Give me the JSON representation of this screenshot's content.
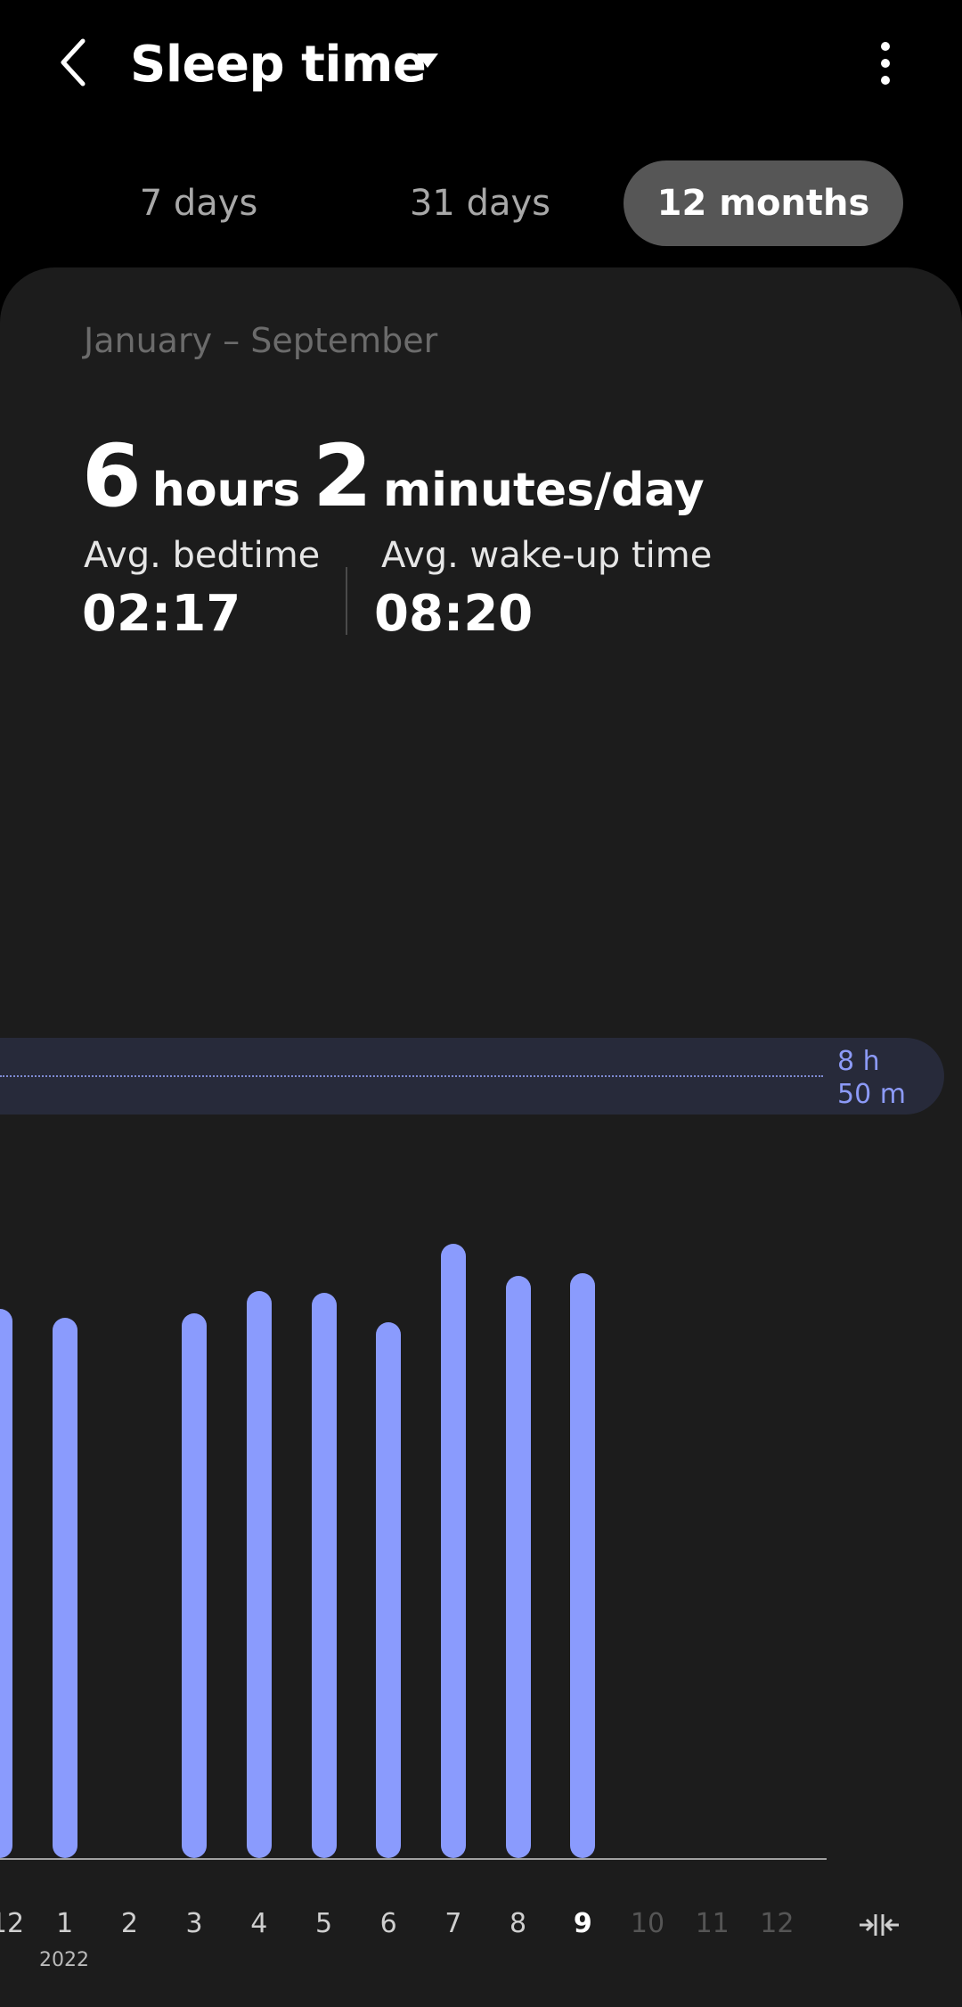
{
  "header": {
    "title": "Sleep time",
    "back_icon": "chevron-left-icon",
    "dropdown_icon": "caret-down-icon",
    "more_icon": "more-vertical-icon"
  },
  "tabs": [
    {
      "label": "7 days",
      "active": false
    },
    {
      "label": "31 days",
      "active": false
    },
    {
      "label": "12 months",
      "active": true
    }
  ],
  "summary": {
    "period": "January – September",
    "hours_value": "6",
    "hours_unit": "hours",
    "minutes_value": "2",
    "minutes_unit": "minutes/day",
    "bedtime_label": "Avg. bedtime",
    "bedtime_value": "02:17",
    "wakeup_label": "Avg. wake-up time",
    "wakeup_value": "08:20"
  },
  "goal": {
    "line1": "8 h",
    "line2": "50 m"
  },
  "chart_data": {
    "type": "bar",
    "categories": [
      "12",
      "1",
      "2",
      "3",
      "4",
      "5",
      "6",
      "7",
      "8",
      "9",
      "10",
      "11",
      "12"
    ],
    "year_label": "2022",
    "values_hours": [
      6.2,
      6.1,
      null,
      6.15,
      6.4,
      6.38,
      6.05,
      6.93,
      6.57,
      6.6,
      null,
      null,
      null
    ],
    "goal_hours": 8.833,
    "current_index": 9,
    "bar_color": "#8a9bfd",
    "goal_color": "#8c9af7"
  },
  "footer": {
    "collapse_icon": "collapse-horizontal-icon"
  },
  "colors": {
    "background": "#000000",
    "card": "#1c1c1c",
    "active_tab": "#565656",
    "goal_band": "#272a3a"
  }
}
